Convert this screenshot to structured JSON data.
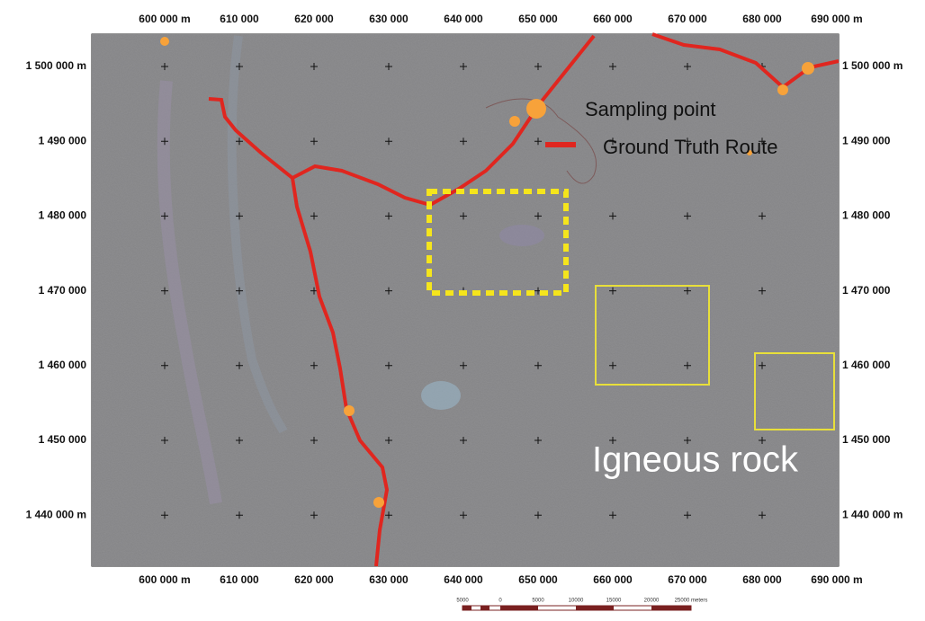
{
  "map": {
    "x_labels": [
      "600 000 m",
      "610 000",
      "620 000",
      "630 000",
      "640 000",
      "650 000",
      "660 000",
      "670 000",
      "680 000",
      "690 000 m"
    ],
    "y_labels": [
      "1 500 000 m",
      "1 490 000",
      "1 480 000",
      "1 470 000",
      "1 460 000",
      "1 450 000",
      "1 440 000 m"
    ],
    "legend": [
      {
        "label": "Sampling point"
      },
      {
        "label": "Ground Truth Route"
      }
    ],
    "annotation": "Igneous rock",
    "scale_labels": [
      "5000",
      "0",
      "5000",
      "10000",
      "15000",
      "20000",
      "25000 meters"
    ]
  }
}
